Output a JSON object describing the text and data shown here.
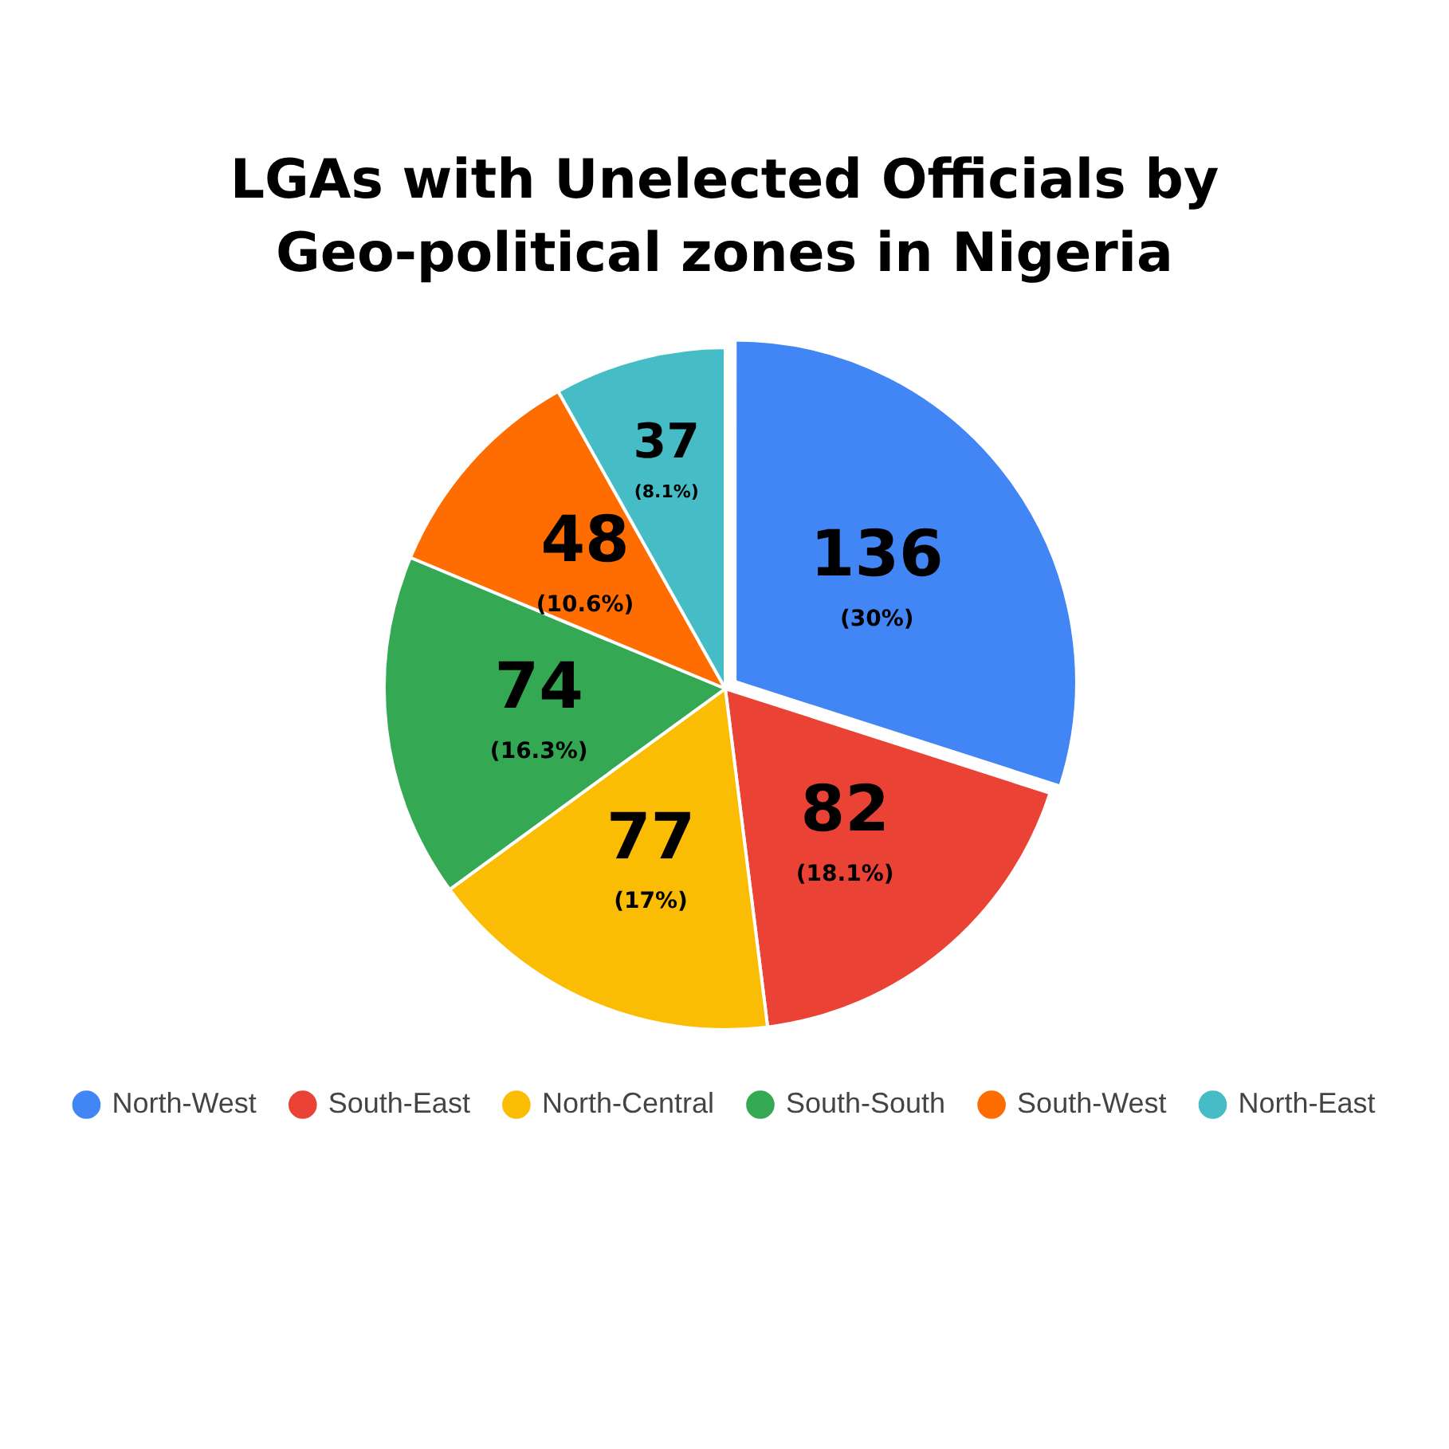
{
  "chart_data": {
    "type": "pie",
    "title": "LGAs with Unelected Officials by Geo-political zones in Nigeria",
    "categories": [
      "North-West",
      "South-East",
      "North-Central",
      "South-South",
      "South-West",
      "North-East"
    ],
    "values": [
      136,
      82,
      77,
      74,
      48,
      37
    ],
    "colors": [
      "#4285f4",
      "#ea4335",
      "#fbbc04",
      "#34a853",
      "#ff6d01",
      "#46bdc6"
    ],
    "value_labels": [
      "136\n(30%)",
      "82\n(18.1%)",
      "77\n(17%)",
      "74\n(16.3%)",
      "48\n(10.6%)",
      "37\n(8.1%)"
    ],
    "legend": "bottom"
  }
}
